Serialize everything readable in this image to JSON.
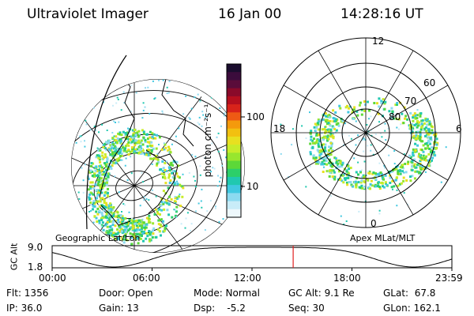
{
  "header": {
    "instrument": "Ultraviolet Imager",
    "date": "16 Jan 00",
    "time": "14:28:16 UT"
  },
  "left_panel": {
    "caption": "Geographic Lat/Lon"
  },
  "right_panel": {
    "caption": "Apex MLat/MLT",
    "mlt_labels": [
      "12",
      "18",
      "6",
      "0"
    ],
    "lat_labels": [
      "60",
      "70",
      "80"
    ]
  },
  "colorbar": {
    "unit_label": "photon cm⁻²s⁻¹",
    "tick_labels": [
      "100",
      "10"
    ],
    "colors": [
      "#1a0d2e",
      "#3b0c3c",
      "#5a0c3a",
      "#8a0a2a",
      "#b50f1e",
      "#d8231a",
      "#ee5a14",
      "#f49a0c",
      "#f2c010",
      "#e8e020",
      "#c8ec2a",
      "#98e62e",
      "#5cd838",
      "#2ccf6a",
      "#20c8b0",
      "#40c8e0",
      "#8cdaf0",
      "#c8ecf8",
      "#eef8fc"
    ]
  },
  "orbit_plot": {
    "ylabel": "GC Alt",
    "y_ticks": [
      "9.0",
      "1.8"
    ],
    "x_ticks": [
      "00:00",
      "06:00",
      "12:00",
      "18:00",
      "23:59"
    ],
    "current_time_hours": 14.47,
    "marker_color": "#e02020"
  },
  "status": {
    "flt": "Flt: 1356",
    "ip": "IP: 36.0",
    "door": "Door: Open",
    "gain": "Gain: 13",
    "mode": "Mode: Normal",
    "dsp": "Dsp:    -5.2",
    "gc_alt": "GC Alt: 9.1 Re",
    "seq": "Seq: 30",
    "glat": "GLat:  67.8",
    "glon": "GLon: 162.1"
  }
}
